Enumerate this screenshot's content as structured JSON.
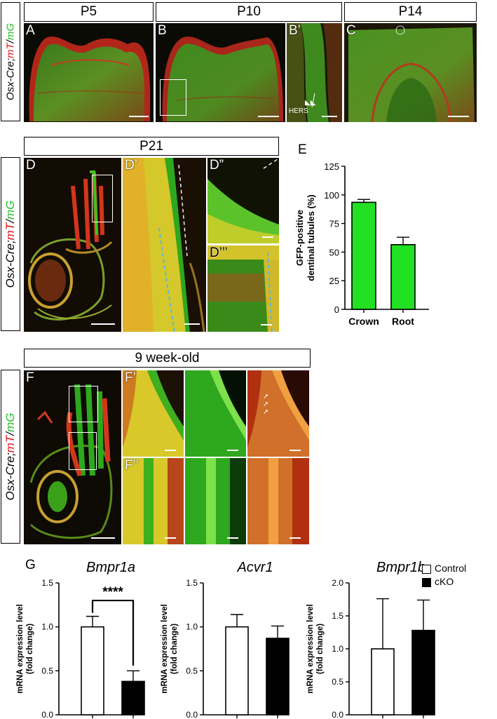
{
  "row1": {
    "side_label": {
      "part1": "Osx-Cre;",
      "part2": "mT",
      "part3": "/",
      "part4": "mG"
    },
    "headers": [
      "P5",
      "P10",
      "P14"
    ],
    "panels": [
      "A",
      "B",
      "B’",
      "C"
    ],
    "hers_label": "HERS"
  },
  "row2": {
    "side_label": {
      "part1": "Osx-Cre;",
      "part2": "mT",
      "part3": "/",
      "part4": "mG"
    },
    "header": "P21",
    "panels": [
      "D",
      "D’",
      "D”",
      "D’’’"
    ]
  },
  "row3": {
    "side_label": {
      "part1": "Osx-Cre;",
      "part2": "mT",
      "part3": "/",
      "part4": "mG"
    },
    "header": "9 week-old",
    "panels": [
      "F",
      "F’",
      "F’’"
    ]
  },
  "panel_G_label": "G",
  "panel_E_label": "E",
  "legend": {
    "control": "Control",
    "cko": "cKO"
  },
  "chart_data": [
    {
      "type": "bar",
      "panel": "E",
      "categories": [
        "Crown",
        "Root"
      ],
      "values": [
        93.5,
        56.5
      ],
      "errors": [
        2.5,
        6.5
      ],
      "ylabel_line1": "GFP-positive",
      "ylabel_line2": "dentinal tubules (%)",
      "ylim": [
        0,
        125
      ],
      "yticks": [
        0,
        25,
        50,
        75,
        100,
        125
      ],
      "colors": {
        "bar": "#22e022"
      }
    },
    {
      "type": "bar",
      "panel": "G",
      "title": "Bmpr1a",
      "series": [
        {
          "name": "Control",
          "values": [
            1.0
          ],
          "errors": [
            0.12
          ]
        },
        {
          "name": "cKO",
          "values": [
            0.38
          ],
          "errors": [
            0.12
          ]
        }
      ],
      "ylabel_line1": "mRNA expression level",
      "ylabel_line2": "(fold change)",
      "ylim": [
        0,
        1.5
      ],
      "yticks": [
        "0.0",
        "0.5",
        "1.0",
        "1.5"
      ],
      "significance": "****"
    },
    {
      "type": "bar",
      "panel": "G",
      "title": "Acvr1",
      "series": [
        {
          "name": "Control",
          "values": [
            1.0
          ],
          "errors": [
            0.14
          ]
        },
        {
          "name": "cKO",
          "values": [
            0.87
          ],
          "errors": [
            0.14
          ]
        }
      ],
      "ylabel_line1": "mRNA expression level",
      "ylabel_line2": "(fold change)",
      "ylim": [
        0,
        1.5
      ],
      "yticks": [
        "0.0",
        "0.5",
        "1.0",
        "1.5"
      ]
    },
    {
      "type": "bar",
      "panel": "G",
      "title": "Bmpr1b",
      "series": [
        {
          "name": "Control",
          "values": [
            1.0
          ],
          "errors": [
            0.76
          ]
        },
        {
          "name": "cKO",
          "values": [
            1.28
          ],
          "errors": [
            0.46
          ]
        }
      ],
      "ylabel_line1": "mRNA expression level",
      "ylabel_line2": "(fold change)",
      "ylim": [
        0,
        2.0
      ],
      "yticks": [
        "0.0",
        "0.5",
        "1.0",
        "1.5",
        "2.0"
      ]
    }
  ]
}
